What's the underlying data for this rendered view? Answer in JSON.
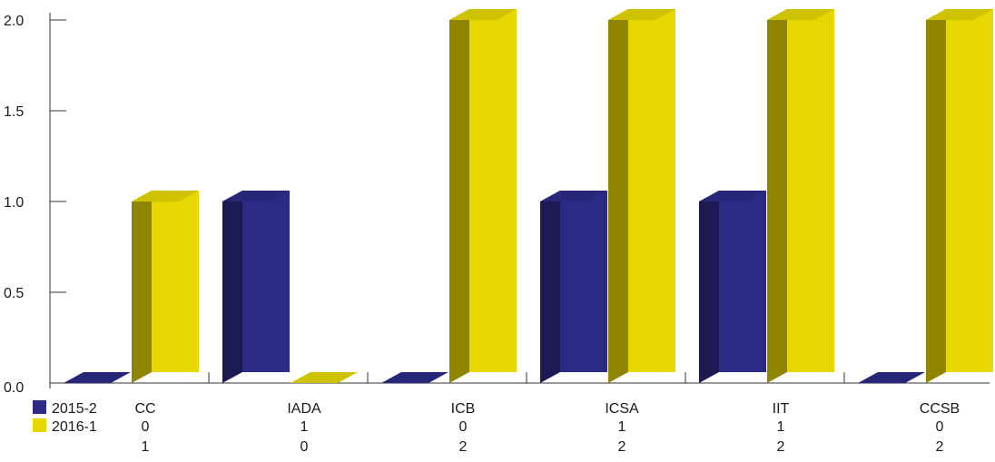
{
  "chart_data": {
    "type": "bar",
    "categories": [
      "CC",
      "IADA",
      "ICB",
      "ICSA",
      "IIT",
      "CCSB"
    ],
    "series": [
      {
        "name": "2015-2",
        "values": [
          0,
          1,
          0,
          1,
          1,
          0
        ],
        "color": "#2b2a85"
      },
      {
        "name": "2016-1",
        "values": [
          1,
          0,
          2,
          2,
          2,
          2
        ],
        "color": "#e6d700"
      }
    ],
    "y_ticks": [
      "0.0",
      "0.5",
      "1.0",
      "1.5",
      "2.0"
    ],
    "ylim": [
      0,
      2
    ],
    "legend": "data-table-bottom-left",
    "grid": false,
    "title": "",
    "xlabel": "",
    "ylabel": ""
  }
}
